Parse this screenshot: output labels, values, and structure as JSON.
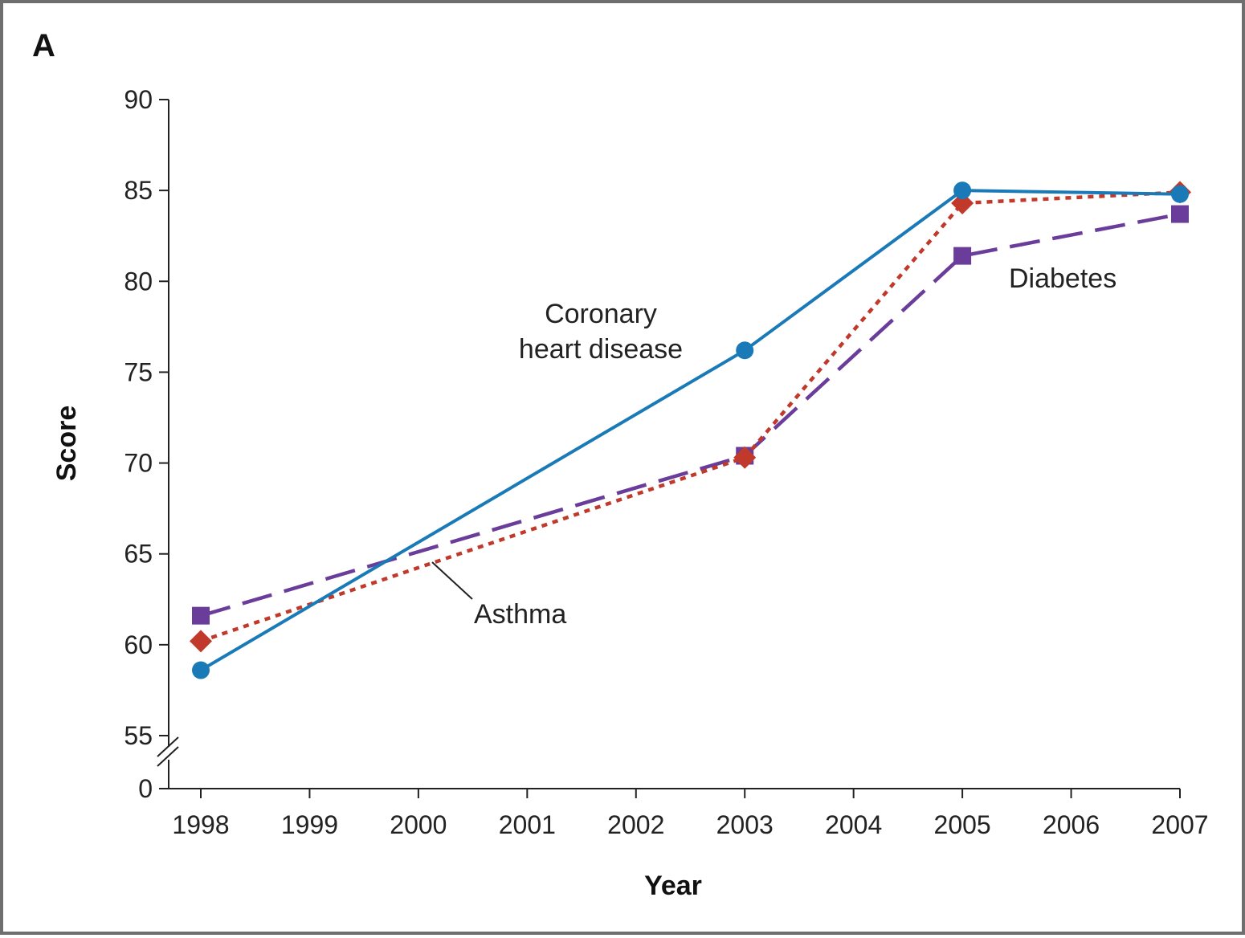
{
  "panel_label": "A",
  "chart_data": {
    "type": "line",
    "xlabel": "Year",
    "ylabel": "Score",
    "x_ticks": [
      1998,
      1999,
      2000,
      2001,
      2002,
      2003,
      2004,
      2005,
      2006,
      2007
    ],
    "y_ticks": [
      55,
      60,
      65,
      70,
      75,
      80,
      85,
      90
    ],
    "y_break": {
      "lower_label": 0,
      "from": 0,
      "to": 55
    },
    "xlim": [
      1998,
      2007
    ],
    "ylim": [
      55,
      90
    ],
    "grid": false,
    "series": [
      {
        "name": "Coronary heart disease",
        "color": "#1a7ab8",
        "line_style": "solid",
        "marker": "circle",
        "points": [
          {
            "x": 1998,
            "y": 58.6
          },
          {
            "x": 2003,
            "y": 76.2
          },
          {
            "x": 2005,
            "y": 85.0
          },
          {
            "x": 2007,
            "y": 84.8
          }
        ]
      },
      {
        "name": "Asthma",
        "color": "#c0392b",
        "line_style": "dotted",
        "marker": "diamond",
        "points": [
          {
            "x": 1998,
            "y": 60.2
          },
          {
            "x": 2003,
            "y": 70.3
          },
          {
            "x": 2005,
            "y": 84.3
          },
          {
            "x": 2007,
            "y": 84.9
          }
        ]
      },
      {
        "name": "Diabetes",
        "color": "#6a3d9a",
        "line_style": "dashed",
        "marker": "square",
        "points": [
          {
            "x": 1998,
            "y": 61.6
          },
          {
            "x": 2003,
            "y": 70.4
          },
          {
            "x": 2005,
            "y": 81.4
          },
          {
            "x": 2007,
            "y": 83.7
          }
        ]
      }
    ],
    "annotations": [
      {
        "lines": [
          "Coronary",
          "heart disease"
        ],
        "series": "Coronary heart disease"
      },
      {
        "lines": [
          "Asthma"
        ],
        "series": "Asthma",
        "leader": true
      },
      {
        "lines": [
          "Diabetes"
        ],
        "series": "Diabetes"
      }
    ]
  }
}
